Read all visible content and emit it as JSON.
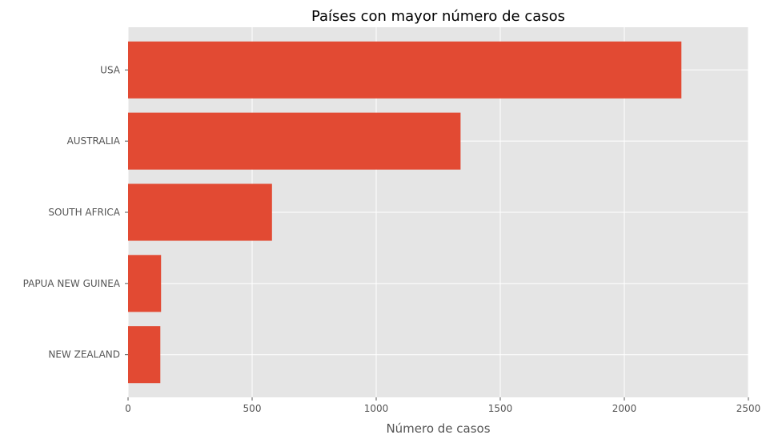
{
  "chart_data": {
    "type": "bar",
    "orientation": "horizontal",
    "title": "Países con mayor número de casos",
    "xlabel": "Número de casos",
    "ylabel": "",
    "categories": [
      "USA",
      "AUSTRALIA",
      "SOUTH AFRICA",
      "PAPUA NEW GUINEA",
      "NEW ZEALAND"
    ],
    "values": [
      2230,
      1340,
      580,
      133,
      130
    ],
    "xlim": [
      0,
      2500
    ],
    "xticks": [
      0,
      500,
      1000,
      1500,
      2000,
      2500
    ],
    "grid": true,
    "legend": "none",
    "colors": {
      "bar": "#E24A33",
      "plot_background": "#E5E5E5",
      "grid": "#FFFFFF"
    }
  }
}
